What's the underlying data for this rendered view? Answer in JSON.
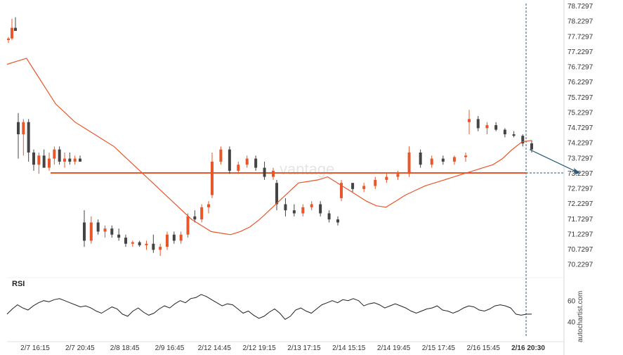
{
  "chart_data": [
    {
      "type": "candlestick",
      "ylim": [
        69.9,
        78.8
      ],
      "yticks": [
        "78.7297",
        "78.2297",
        "77.7297",
        "77.2297",
        "76.7297",
        "76.2297",
        "75.7297",
        "75.2297",
        "74.7297",
        "74.2297",
        "73.7297",
        "73.2297",
        "72.7297",
        "72.2297",
        "71.7297",
        "71.2297",
        "70.7297",
        "70.2297"
      ],
      "xticks": [
        "2/7 16:15",
        "2/7 20:45",
        "2/8 18:45",
        "2/9 16:45",
        "2/12 14:45",
        "2/12 19:15",
        "2/13 17:15",
        "2/14 15:15",
        "2/14 19:45",
        "2/15 17:45",
        "2/16 15:45",
        "2/16 20:30"
      ],
      "highlight_xtick": "2/16 20:30",
      "level_line": 73.2297,
      "forecast_target": 73.2297,
      "series": [
        {
          "kind": "candles",
          "colors": {
            "up": "#e8562a",
            "down": "#444444"
          },
          "ohlc": [
            [
              77.6,
              77.7,
              77.5,
              77.65
            ],
            [
              77.65,
              78.3,
              77.6,
              78.0
            ],
            [
              78.0,
              78.35,
              77.9,
              77.9
            ],
            [
              74.9,
              75.2,
              73.7,
              74.5
            ],
            [
              74.5,
              75.0,
              73.8,
              74.9
            ],
            [
              74.9,
              75.0,
              73.6,
              73.9
            ],
            [
              73.9,
              74.0,
              73.3,
              73.5
            ],
            [
              73.5,
              73.9,
              73.2,
              73.8
            ],
            [
              73.8,
              74.0,
              73.4,
              73.4
            ],
            [
              73.4,
              73.9,
              73.3,
              73.7
            ],
            [
              73.7,
              74.1,
              73.5,
              74.0
            ],
            [
              74.0,
              74.1,
              73.5,
              73.6
            ],
            [
              73.6,
              73.9,
              73.4,
              73.7
            ],
            [
              73.7,
              73.9,
              73.5,
              73.6
            ],
            [
              73.6,
              73.8,
              73.5,
              73.7
            ],
            [
              73.7,
              73.8,
              73.6,
              73.6
            ],
            [
              71.6,
              72.0,
              70.8,
              71.0
            ],
            [
              71.0,
              71.8,
              70.9,
              71.6
            ],
            [
              71.6,
              71.7,
              71.2,
              71.3
            ],
            [
              71.3,
              71.5,
              71.1,
              71.4
            ],
            [
              71.4,
              71.5,
              71.1,
              71.2
            ],
            [
              71.2,
              71.4,
              71.0,
              71.1
            ],
            [
              71.1,
              71.2,
              70.8,
              70.9
            ],
            [
              70.9,
              71.0,
              70.8,
              70.95
            ],
            [
              70.95,
              71.0,
              70.8,
              70.85
            ],
            [
              70.85,
              71.0,
              70.7,
              70.9
            ],
            [
              70.9,
              71.2,
              70.6,
              70.7
            ],
            [
              70.7,
              70.9,
              70.5,
              70.8
            ],
            [
              70.8,
              71.3,
              70.7,
              71.2
            ],
            [
              71.2,
              71.3,
              70.9,
              71.0
            ],
            [
              71.0,
              71.3,
              70.9,
              71.2
            ],
            [
              71.2,
              71.9,
              71.1,
              71.8
            ],
            [
              71.8,
              72.0,
              71.6,
              71.7
            ],
            [
              71.7,
              72.2,
              71.6,
              72.1
            ],
            [
              72.1,
              72.3,
              71.9,
              72.2
            ],
            [
              72.5,
              73.9,
              72.4,
              73.6
            ],
            [
              73.6,
              74.1,
              73.5,
              74.0
            ],
            [
              74.0,
              74.1,
              73.2,
              73.3
            ],
            [
              73.3,
              73.6,
              73.2,
              73.5
            ],
            [
              73.5,
              73.8,
              73.4,
              73.7
            ],
            [
              73.7,
              73.8,
              73.3,
              73.4
            ],
            [
              73.4,
              73.6,
              73.0,
              73.1
            ],
            [
              73.1,
              73.4,
              73.0,
              73.3
            ],
            [
              72.9,
              73.0,
              72.0,
              72.2
            ],
            [
              72.2,
              72.4,
              71.8,
              72.0
            ],
            [
              72.0,
              72.2,
              71.8,
              71.9
            ],
            [
              71.9,
              72.2,
              71.8,
              72.1
            ],
            [
              72.1,
              72.3,
              72.0,
              72.2
            ],
            [
              72.2,
              72.3,
              71.8,
              71.9
            ],
            [
              71.9,
              72.0,
              71.6,
              71.7
            ],
            [
              71.7,
              71.8,
              71.5,
              71.6
            ],
            [
              72.4,
              73.0,
              72.3,
              72.9
            ],
            [
              72.9,
              72.9,
              72.6,
              72.7
            ],
            [
              72.7,
              72.9,
              72.6,
              72.8
            ],
            [
              72.8,
              73.1,
              72.7,
              73.0
            ],
            [
              73.0,
              73.2,
              72.9,
              73.1
            ],
            [
              73.1,
              73.3,
              73.0,
              73.2
            ],
            [
              73.2,
              74.1,
              73.1,
              73.9
            ],
            [
              73.9,
              74.0,
              73.4,
              73.5
            ],
            [
              73.5,
              73.8,
              73.4,
              73.7
            ],
            [
              73.7,
              73.8,
              73.5,
              73.6
            ],
            [
              73.6,
              73.8,
              73.5,
              73.75
            ],
            [
              73.75,
              73.9,
              73.6,
              73.8
            ],
            [
              74.9,
              75.3,
              74.5,
              75.0
            ],
            [
              75.0,
              75.1,
              74.6,
              74.7
            ],
            [
              74.7,
              74.9,
              74.5,
              74.8
            ],
            [
              74.8,
              74.9,
              74.6,
              74.65
            ],
            [
              74.65,
              74.7,
              74.4,
              74.5
            ],
            [
              74.5,
              74.6,
              74.4,
              74.45
            ],
            [
              74.45,
              74.5,
              74.1,
              74.2
            ],
            [
              74.2,
              74.3,
              73.9,
              74.0
            ]
          ]
        },
        {
          "kind": "moving-average",
          "color": "#e8562a",
          "values": [
            76.8,
            76.9,
            77.0,
            76.5,
            76.0,
            75.5,
            75.2,
            74.9,
            74.7,
            74.5,
            74.3,
            74.1,
            73.8,
            73.5,
            73.2,
            72.9,
            72.6,
            72.3,
            72.0,
            71.7,
            71.5,
            71.3,
            71.25,
            71.2,
            71.3,
            71.45,
            71.7,
            72.0,
            72.3,
            72.6,
            72.9,
            72.95,
            73.0,
            73.1,
            72.9,
            72.7,
            72.5,
            72.3,
            72.15,
            72.1,
            72.3,
            72.5,
            72.65,
            72.8,
            72.9,
            73.0,
            73.1,
            73.2,
            73.3,
            73.4,
            73.5,
            73.7,
            74.0,
            74.25,
            74.3
          ]
        }
      ],
      "forecast_arrow": true,
      "watermark": "vantage"
    },
    {
      "type": "line",
      "title": "RSI",
      "yticks": [
        "60",
        "40"
      ],
      "ylim": [
        28,
        72
      ],
      "values": [
        47,
        52,
        56,
        53,
        51,
        55,
        58,
        60,
        59,
        61,
        62,
        60,
        58,
        56,
        54,
        55,
        53,
        50,
        48,
        51,
        54,
        52,
        47,
        45,
        50,
        53,
        49,
        46,
        48,
        52,
        55,
        53,
        57,
        60,
        58,
        62,
        63,
        66,
        64,
        61,
        58,
        55,
        57,
        56,
        52,
        48,
        50,
        46,
        43,
        45,
        49,
        52,
        48,
        42,
        45,
        51,
        53,
        50,
        48,
        52,
        56,
        58,
        60,
        58,
        61,
        60,
        62,
        60,
        55,
        57,
        58,
        56,
        53,
        55,
        57,
        55,
        53,
        50,
        48,
        50,
        52,
        53,
        55,
        51,
        50,
        48,
        50,
        53,
        55,
        54,
        51,
        50,
        52,
        55,
        56,
        55,
        53,
        47,
        46,
        47,
        47
      ],
      "color": "#222222"
    }
  ],
  "brand": {
    "side_text": "autochartist.com"
  }
}
